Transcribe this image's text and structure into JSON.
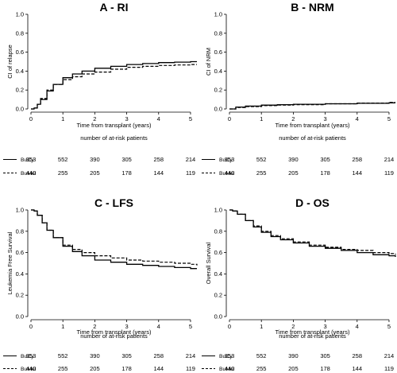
{
  "chart_data": [
    {
      "type": "line",
      "title": "A - RI",
      "ylabel": "CI of relapse",
      "xlabel": "Time from transplant (years)",
      "at_risk_title": "number of at-risk patients",
      "xlim": [
        0,
        5.2
      ],
      "ylim": [
        0,
        1
      ],
      "xticks": [
        "0",
        "1",
        "2",
        "3",
        "4",
        "5"
      ],
      "yticks": [
        "0.0",
        "0.2",
        "0.4",
        "0.6",
        "0.8",
        "1.0"
      ],
      "series": [
        {
          "name": "BuCy",
          "style": "solid",
          "x": [
            0,
            0.1,
            0.2,
            0.3,
            0.5,
            0.7,
            1.0,
            1.3,
            1.6,
            2.0,
            2.5,
            3.0,
            3.5,
            4.0,
            4.5,
            5.0,
            5.2
          ],
          "y": [
            0,
            0.01,
            0.05,
            0.1,
            0.19,
            0.26,
            0.33,
            0.37,
            0.4,
            0.43,
            0.45,
            0.47,
            0.48,
            0.49,
            0.495,
            0.5,
            0.5
          ],
          "at_risk": [
            "953",
            "552",
            "390",
            "305",
            "258",
            "214"
          ]
        },
        {
          "name": "BuMel",
          "style": "dashed",
          "x": [
            0,
            0.1,
            0.2,
            0.3,
            0.5,
            0.7,
            1.0,
            1.3,
            1.6,
            2.0,
            2.5,
            3.0,
            3.5,
            4.0,
            4.5,
            5.0,
            5.2
          ],
          "y": [
            0,
            0.01,
            0.05,
            0.11,
            0.2,
            0.26,
            0.31,
            0.34,
            0.37,
            0.39,
            0.42,
            0.44,
            0.45,
            0.46,
            0.465,
            0.47,
            0.47
          ],
          "at_risk": [
            "440",
            "255",
            "205",
            "178",
            "144",
            "119"
          ]
        }
      ]
    },
    {
      "type": "line",
      "title": "B - NRM",
      "ylabel": "CI of NRM",
      "xlabel": "Time from transplant (years)",
      "at_risk_title": "number of at-risk patients",
      "xlim": [
        0,
        5.2
      ],
      "ylim": [
        0,
        1
      ],
      "xticks": [
        "0",
        "1",
        "2",
        "3",
        "4",
        "5"
      ],
      "yticks": [
        "0.0",
        "0.2",
        "0.4",
        "0.6",
        "0.8",
        "1.0"
      ],
      "series": [
        {
          "name": "BuCy",
          "style": "solid",
          "x": [
            0,
            0.2,
            0.5,
            1.0,
            1.5,
            2.0,
            3.0,
            4.0,
            5.0,
            5.2
          ],
          "y": [
            0,
            0.02,
            0.03,
            0.04,
            0.045,
            0.05,
            0.055,
            0.06,
            0.065,
            0.065
          ],
          "at_risk": [
            "953",
            "552",
            "390",
            "305",
            "258",
            "214"
          ]
        },
        {
          "name": "BuMel",
          "style": "dashed",
          "x": [
            0,
            0.2,
            0.5,
            1.0,
            1.5,
            2.0,
            3.0,
            4.0,
            5.0,
            5.2
          ],
          "y": [
            0,
            0.015,
            0.025,
            0.035,
            0.04,
            0.045,
            0.055,
            0.062,
            0.07,
            0.07
          ],
          "at_risk": [
            "440",
            "255",
            "205",
            "178",
            "144",
            "119"
          ]
        }
      ]
    },
    {
      "type": "line",
      "title": "C - LFS",
      "ylabel": "Leukemia Free Survival",
      "xlabel": "Time from transplant (years)",
      "at_risk_title": "number of at-risk patients",
      "xlim": [
        0,
        5.2
      ],
      "ylim": [
        0,
        1
      ],
      "xticks": [
        "0",
        "1",
        "2",
        "3",
        "4",
        "5"
      ],
      "yticks": [
        "0.0",
        "0.2",
        "0.4",
        "0.6",
        "0.8",
        "1.0"
      ],
      "series": [
        {
          "name": "BuCy",
          "style": "solid",
          "x": [
            0,
            0.1,
            0.2,
            0.35,
            0.5,
            0.7,
            1.0,
            1.3,
            1.6,
            2.0,
            2.5,
            3.0,
            3.5,
            4.0,
            4.5,
            5.0,
            5.2
          ],
          "y": [
            1,
            0.99,
            0.95,
            0.88,
            0.81,
            0.74,
            0.66,
            0.61,
            0.57,
            0.53,
            0.51,
            0.49,
            0.48,
            0.47,
            0.46,
            0.45,
            0.45
          ],
          "at_risk": [
            "953",
            "552",
            "390",
            "305",
            "258",
            "214"
          ]
        },
        {
          "name": "BuMel",
          "style": "dashed",
          "x": [
            0,
            0.1,
            0.2,
            0.35,
            0.5,
            0.7,
            1.0,
            1.3,
            1.6,
            2.0,
            2.5,
            3.0,
            3.5,
            4.0,
            4.5,
            5.0,
            5.2
          ],
          "y": [
            1,
            0.99,
            0.95,
            0.88,
            0.81,
            0.74,
            0.67,
            0.63,
            0.6,
            0.57,
            0.55,
            0.53,
            0.52,
            0.51,
            0.5,
            0.49,
            0.48
          ],
          "at_risk": [
            "440",
            "255",
            "205",
            "178",
            "144",
            "119"
          ]
        }
      ]
    },
    {
      "type": "line",
      "title": "D - OS",
      "ylabel": "Overall Survival",
      "xlabel": "Time from transplant (years)",
      "at_risk_title": "number of at-risk patients",
      "xlim": [
        0,
        5.2
      ],
      "ylim": [
        0,
        1
      ],
      "xticks": [
        "0",
        "1",
        "2",
        "3",
        "4",
        "5"
      ],
      "yticks": [
        "0.0",
        "0.2",
        "0.4",
        "0.6",
        "0.8",
        "1.0"
      ],
      "series": [
        {
          "name": "BuCy",
          "style": "solid",
          "x": [
            0,
            0.1,
            0.25,
            0.5,
            0.75,
            1.0,
            1.3,
            1.6,
            2.0,
            2.5,
            3.0,
            3.5,
            4.0,
            4.5,
            5.0,
            5.2
          ],
          "y": [
            1,
            0.99,
            0.96,
            0.9,
            0.84,
            0.79,
            0.75,
            0.72,
            0.69,
            0.66,
            0.64,
            0.62,
            0.6,
            0.58,
            0.57,
            0.56
          ],
          "at_risk": [
            "953",
            "552",
            "390",
            "305",
            "258",
            "214"
          ]
        },
        {
          "name": "BuMel",
          "style": "dashed",
          "x": [
            0,
            0.1,
            0.25,
            0.5,
            0.75,
            1.0,
            1.3,
            1.6,
            2.0,
            2.5,
            3.0,
            3.5,
            4.0,
            4.5,
            5.0,
            5.2
          ],
          "y": [
            1,
            0.99,
            0.96,
            0.9,
            0.85,
            0.8,
            0.76,
            0.73,
            0.7,
            0.67,
            0.65,
            0.63,
            0.62,
            0.6,
            0.59,
            0.58
          ],
          "at_risk": [
            "440",
            "255",
            "205",
            "178",
            "144",
            "119"
          ]
        }
      ]
    }
  ]
}
